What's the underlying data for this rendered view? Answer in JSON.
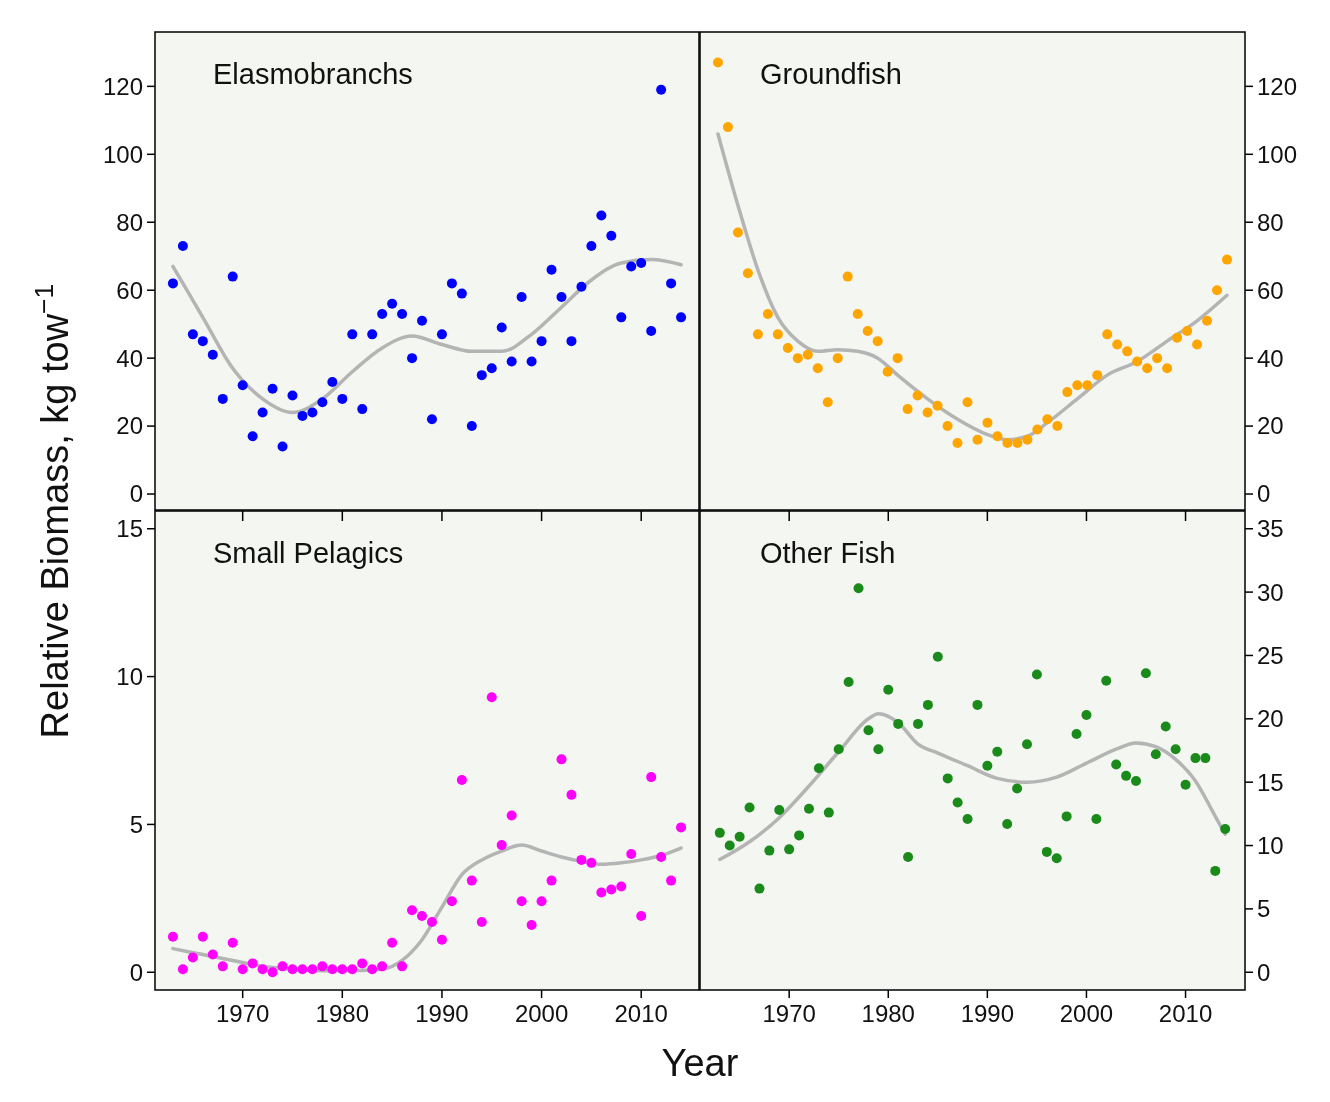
{
  "chart_data": [
    {
      "type": "scatter",
      "title": "Elasmobranchs",
      "ylabel": "Relative Biomass, kg tow$^{−1}$",
      "marker": "circle",
      "tick_labels": "y",
      "xlim": [
        1961.2,
        2015.8
      ],
      "ylim": [
        -4.7,
        136
      ],
      "yticks": [
        0,
        20,
        40,
        60,
        80,
        100,
        120
      ],
      "x": [
        1963,
        1964,
        1965,
        1966,
        1967,
        1968,
        1969,
        1970,
        1971,
        1972,
        1973,
        1974,
        1975,
        1976,
        1977,
        1978,
        1979,
        1980,
        1981,
        1982,
        1983,
        1984,
        1985,
        1986,
        1987,
        1988,
        1989,
        1990,
        1991,
        1992,
        1993,
        1994,
        1995,
        1996,
        1997,
        1998,
        1999,
        2000,
        2001,
        2002,
        2003,
        2004,
        2005,
        2006,
        2007,
        2008,
        2009,
        2010,
        2011,
        2012,
        2013,
        2014
      ],
      "series": [
        {
          "color": "#0000ff",
          "values": [
            62,
            73,
            47,
            45,
            41,
            28,
            64,
            32,
            17,
            24,
            31,
            14,
            29,
            23,
            24,
            27,
            33,
            28,
            47,
            25,
            47,
            53,
            56,
            53,
            40,
            51,
            22,
            47,
            62,
            59,
            20,
            35,
            37,
            49,
            39,
            58,
            39,
            45,
            66,
            58,
            45,
            61,
            73,
            82,
            76,
            52,
            67,
            68,
            48,
            119,
            62,
            52
          ]
        },
        {
          "type": "line",
          "marker": "none",
          "color": "#b4b4b4",
          "x": [
            1963,
            1966,
            1969,
            1972,
            1975,
            1978,
            1981,
            1984,
            1987,
            1990,
            1993,
            1996,
            1999,
            2002,
            2005,
            2008,
            2011,
            2014
          ],
          "values": [
            67,
            52,
            37,
            28,
            24,
            28,
            36,
            43,
            46.5,
            44,
            42,
            42,
            47,
            55,
            63,
            68,
            69,
            67.5
          ]
        }
      ]
    },
    {
      "type": "scatter",
      "title": "Groundfish",
      "marker": "circle",
      "tick_labels": "y",
      "xlim": [
        1961.2,
        2015.8
      ],
      "ylim": [
        -4.7,
        136
      ],
      "yticks": [
        0,
        20,
        40,
        60,
        80,
        100,
        120
      ],
      "x": [
        1963,
        1964,
        1965,
        1966,
        1967,
        1968,
        1969,
        1970,
        1971,
        1972,
        1973,
        1974,
        1975,
        1976,
        1977,
        1978,
        1979,
        1980,
        1981,
        1982,
        1983,
        1984,
        1985,
        1986,
        1987,
        1988,
        1989,
        1990,
        1991,
        1992,
        1993,
        1994,
        1995,
        1996,
        1997,
        1998,
        1999,
        2000,
        2001,
        2002,
        2003,
        2004,
        2005,
        2006,
        2007,
        2008,
        2009,
        2010,
        2011,
        2012,
        2013,
        2014
      ],
      "series": [
        {
          "color": "#ffa500",
          "values": [
            127,
            108,
            77,
            65,
            47,
            53,
            47,
            43,
            40,
            41,
            37,
            27,
            40,
            64,
            53,
            48,
            45,
            36,
            40,
            25,
            29,
            24,
            26,
            20,
            15,
            27,
            16,
            21,
            17,
            15,
            15,
            16,
            19,
            22,
            20,
            30,
            32,
            32,
            35,
            47,
            44,
            42,
            39,
            37,
            40,
            37,
            46,
            48,
            44,
            51,
            60,
            69
          ]
        },
        {
          "type": "line",
          "marker": "none",
          "color": "#b4b4b4",
          "x": [
            1963,
            1965,
            1967,
            1969,
            1971,
            1973,
            1975,
            1977,
            1979,
            1981,
            1984,
            1987,
            1990,
            1992,
            1994,
            1996,
            1999,
            2002,
            2005,
            2008,
            2011,
            2014
          ],
          "values": [
            106,
            85,
            66,
            52,
            45,
            42,
            42.5,
            42,
            40,
            35,
            28,
            22,
            17.5,
            16,
            17,
            21,
            28,
            35,
            39,
            45,
            51,
            58.5
          ]
        }
      ]
    },
    {
      "type": "scatter",
      "title": "Small Pelagics",
      "xlabel": "Year",
      "marker": "circle",
      "xlim": [
        1961.2,
        2015.8
      ],
      "ylim": [
        -0.6,
        15.6
      ],
      "xticks": [
        1970,
        1980,
        1990,
        2000,
        2010
      ],
      "yticks": [
        0,
        5,
        10,
        15
      ],
      "x": [
        1963,
        1964,
        1965,
        1966,
        1967,
        1968,
        1969,
        1970,
        1971,
        1972,
        1973,
        1974,
        1975,
        1976,
        1977,
        1978,
        1979,
        1980,
        1981,
        1982,
        1983,
        1984,
        1985,
        1986,
        1987,
        1988,
        1989,
        1990,
        1991,
        1992,
        1993,
        1994,
        1995,
        1996,
        1997,
        1998,
        1999,
        2000,
        2001,
        2002,
        2003,
        2004,
        2005,
        2006,
        2007,
        2008,
        2009,
        2010,
        2011,
        2012,
        2013,
        2014
      ],
      "series": [
        {
          "color": "#ff00ff",
          "values": [
            1.2,
            0.1,
            0.5,
            1.2,
            0.6,
            0.2,
            1.0,
            0.1,
            0.3,
            0.1,
            0.0,
            0.2,
            0.1,
            0.1,
            0.1,
            0.2,
            0.1,
            0.1,
            0.1,
            0.3,
            0.1,
            0.2,
            1.0,
            0.2,
            2.1,
            1.9,
            1.7,
            1.1,
            2.4,
            6.5,
            3.1,
            1.7,
            9.3,
            4.3,
            5.3,
            2.4,
            1.6,
            2.4,
            3.1,
            7.2,
            6.0,
            3.8,
            3.7,
            2.7,
            2.8,
            2.9,
            4.0,
            1.9,
            6.6,
            3.9,
            3.1,
            4.9
          ]
        },
        {
          "type": "line",
          "marker": "none",
          "color": "#b4b4b4",
          "x": [
            1963,
            1966,
            1969,
            1972,
            1975,
            1978,
            1981,
            1984,
            1986,
            1988,
            1990,
            1992,
            1994,
            1996,
            1998,
            2000,
            2002,
            2004,
            2006,
            2008,
            2010,
            2012,
            2014
          ],
          "values": [
            0.8,
            0.6,
            0.4,
            0.2,
            0.1,
            0.05,
            0.05,
            0.1,
            0.4,
            1.1,
            2.2,
            3.3,
            3.8,
            4.1,
            4.3,
            4.1,
            3.9,
            3.75,
            3.65,
            3.7,
            3.8,
            3.95,
            4.2
          ]
        }
      ]
    },
    {
      "type": "scatter",
      "title": "Other Fish",
      "marker": "circle",
      "xlim": [
        1961,
        2016
      ],
      "ylim": [
        -1.4,
        36.4
      ],
      "xticks": [
        1970,
        1980,
        1990,
        2000,
        2010
      ],
      "yticks": [
        0,
        5,
        10,
        15,
        20,
        25,
        30,
        35
      ],
      "x": [
        1963,
        1964,
        1965,
        1966,
        1967,
        1968,
        1969,
        1970,
        1971,
        1972,
        1973,
        1974,
        1975,
        1976,
        1977,
        1978,
        1979,
        1980,
        1981,
        1982,
        1983,
        1984,
        1985,
        1986,
        1987,
        1988,
        1989,
        1990,
        1991,
        1992,
        1993,
        1994,
        1995,
        1996,
        1997,
        1998,
        1999,
        2000,
        2001,
        2002,
        2003,
        2004,
        2005,
        2006,
        2007,
        2008,
        2009,
        2010,
        2011,
        2012,
        2013,
        2014
      ],
      "series": [
        {
          "color": "#1a8a1a",
          "values": [
            11.0,
            10.0,
            10.7,
            13.0,
            6.6,
            9.6,
            12.8,
            9.7,
            10.8,
            12.9,
            16.1,
            12.6,
            17.6,
            22.9,
            30.3,
            19.1,
            17.6,
            22.3,
            19.6,
            9.1,
            19.6,
            21.1,
            24.9,
            15.3,
            13.4,
            12.1,
            21.1,
            16.3,
            17.4,
            11.7,
            14.5,
            18.0,
            23.5,
            9.5,
            9.0,
            12.3,
            18.8,
            20.3,
            12.1,
            23.0,
            16.4,
            15.5,
            15.1,
            23.6,
            17.2,
            19.4,
            17.6,
            14.8,
            16.9,
            16.9,
            8.0,
            11.3
          ]
        },
        {
          "type": "line",
          "marker": "none",
          "color": "#b4b4b4",
          "x": [
            1963,
            1966,
            1969,
            1972,
            1975,
            1978,
            1979,
            1981,
            1983,
            1985,
            1988,
            1991,
            1994,
            1997,
            2000,
            2003,
            2005,
            2007,
            2009,
            2011,
            2013,
            2014
          ],
          "values": [
            8.9,
            10.3,
            12.2,
            14.7,
            17.4,
            20,
            20.4,
            19.7,
            18.0,
            17.3,
            16.3,
            15.3,
            15.0,
            15.4,
            16.5,
            17.6,
            18.1,
            17.8,
            16.8,
            15.1,
            12.3,
            10.9
          ]
        }
      ]
    }
  ]
}
